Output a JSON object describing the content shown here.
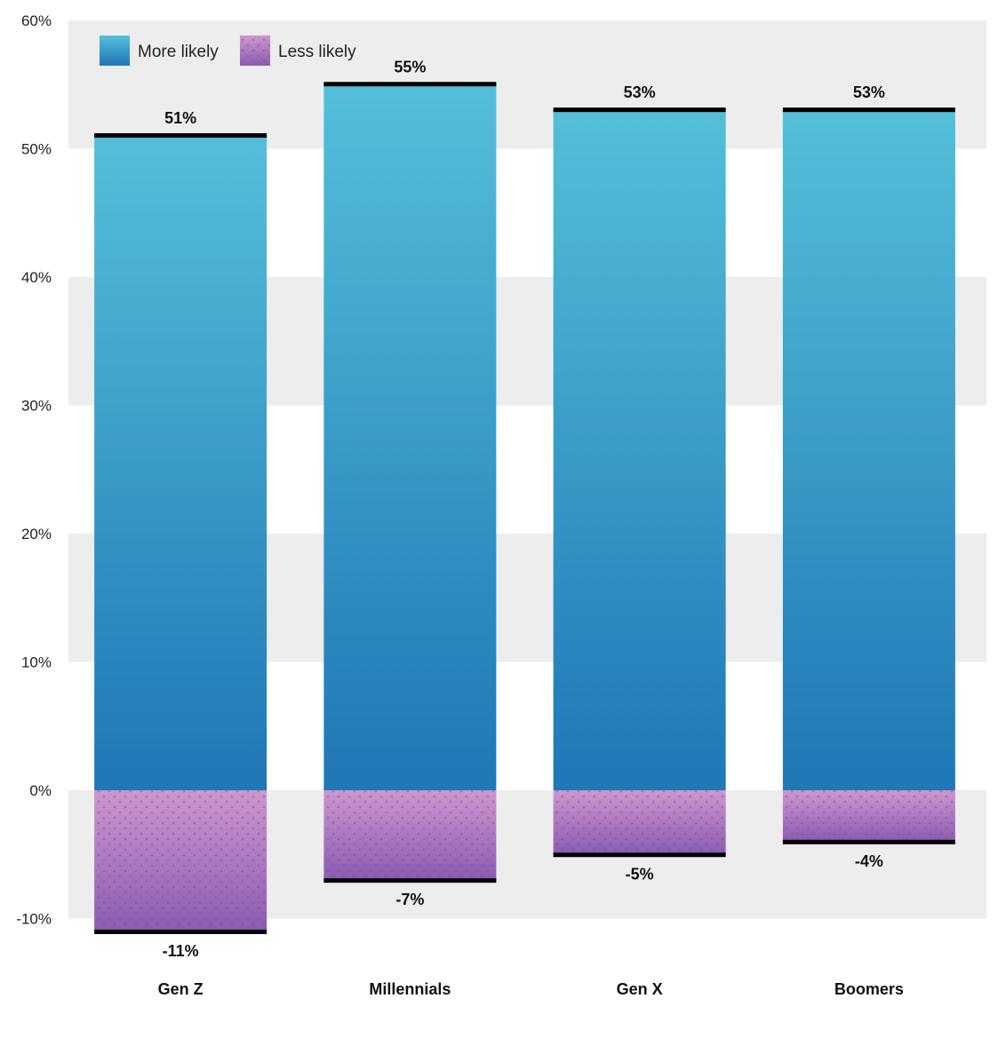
{
  "chart_data": {
    "type": "bar",
    "stacked": "diverging",
    "categories": [
      "Gen Z",
      "Millennials",
      "Gen X",
      "Boomers"
    ],
    "series": [
      {
        "name": "More likely",
        "values": [
          51,
          55,
          53,
          53
        ],
        "labels": [
          "51%",
          "55%",
          "53%",
          "53%"
        ]
      },
      {
        "name": "Less likely",
        "values": [
          -11,
          -7,
          -5,
          -4
        ],
        "labels": [
          "-11%",
          "-7%",
          "-5%",
          "-4%"
        ]
      }
    ],
    "yticks": [
      {
        "value": 60,
        "label": "60%"
      },
      {
        "value": 50,
        "label": "50%"
      },
      {
        "value": 40,
        "label": "40%"
      },
      {
        "value": 30,
        "label": "30%"
      },
      {
        "value": 20,
        "label": "20%"
      },
      {
        "value": 10,
        "label": "10%"
      },
      {
        "value": 0,
        "label": "0%"
      },
      {
        "value": -10,
        "label": "-10%"
      }
    ],
    "ylim": [
      -10,
      60
    ],
    "grid": "alternating bands",
    "legend_position": "top-left",
    "colors": {
      "more_top": "#54bfd9",
      "more_bottom": "#1f77b6",
      "less_top": "#cf96cf",
      "less_bottom": "#8a5bb0",
      "band": "#ededed",
      "cap": "#000000"
    }
  }
}
